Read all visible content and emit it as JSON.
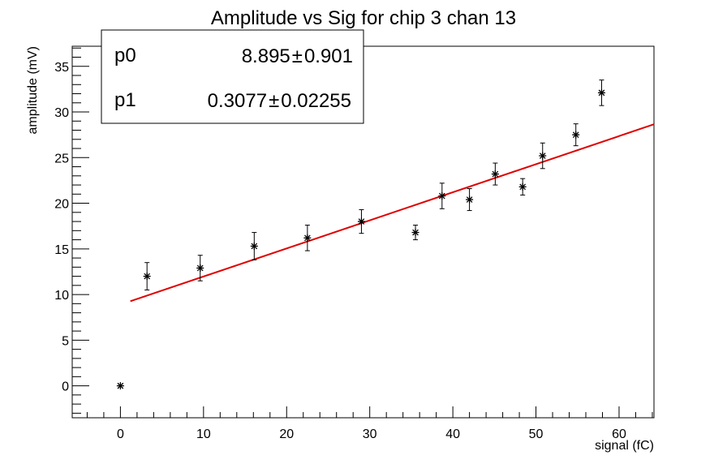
{
  "chart_data": {
    "type": "scatter",
    "title": "Amplitude vs Sig for chip 3 chan 13",
    "xlabel": "signal (fC)",
    "ylabel": "amplitude (mV)",
    "xlim": [
      -5.8,
      64.2
    ],
    "ylim": [
      -3.5,
      37.2
    ],
    "x_ticks": [
      0,
      10,
      20,
      30,
      40,
      50,
      60
    ],
    "y_ticks": [
      0,
      5,
      10,
      15,
      20,
      25,
      30,
      35
    ],
    "grid": false,
    "series": [
      {
        "marker": "asterisk",
        "color": "#000000",
        "points": [
          {
            "x": 0.0,
            "y": 0.0,
            "err": 0.0
          },
          {
            "x": 3.2,
            "y": 12.0,
            "err": 1.5
          },
          {
            "x": 9.6,
            "y": 12.9,
            "err": 1.4
          },
          {
            "x": 16.1,
            "y": 15.3,
            "err": 1.5
          },
          {
            "x": 22.5,
            "y": 16.2,
            "err": 1.4
          },
          {
            "x": 29.0,
            "y": 18.0,
            "err": 1.3
          },
          {
            "x": 35.5,
            "y": 16.8,
            "err": 0.8
          },
          {
            "x": 38.7,
            "y": 20.8,
            "err": 1.4
          },
          {
            "x": 42.0,
            "y": 20.4,
            "err": 1.2
          },
          {
            "x": 45.1,
            "y": 23.2,
            "err": 1.2
          },
          {
            "x": 48.4,
            "y": 21.8,
            "err": 0.9
          },
          {
            "x": 50.8,
            "y": 25.2,
            "err": 1.4
          },
          {
            "x": 54.8,
            "y": 27.5,
            "err": 1.2
          },
          {
            "x": 57.9,
            "y": 32.1,
            "err": 1.4
          }
        ]
      }
    ],
    "fit": {
      "color": "#e00000",
      "p0": 8.895,
      "p1": 0.3077,
      "x_start": 1.2,
      "x_end": 64.2
    },
    "stats_box": {
      "rows": [
        {
          "name": "p0",
          "value": "8.895",
          "error": "0.901"
        },
        {
          "name": "p1",
          "value": "0.3077",
          "error": "0.02255"
        }
      ],
      "pm_symbol": "±"
    }
  }
}
